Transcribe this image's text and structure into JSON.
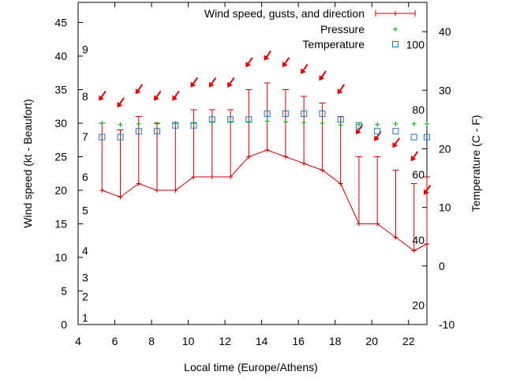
{
  "chart_data": {
    "type": "line",
    "xlabel": "Local time (Europe/Athens)",
    "ylabel": "Wind speed (kt - Beaufort)",
    "y2label": "Temperature (C - F)",
    "xlim": [
      4,
      23
    ],
    "ylim": [
      0,
      48
    ],
    "y2lim": [
      -10,
      45
    ],
    "x_ticks": [
      4,
      6,
      8,
      10,
      12,
      14,
      16,
      18,
      20,
      22
    ],
    "y_ticks": [
      0,
      5,
      10,
      15,
      20,
      25,
      30,
      35,
      40,
      45
    ],
    "y2_ticks": [
      -10,
      0,
      10,
      20,
      30,
      40
    ],
    "beaufort_ticks": [
      {
        "label": "1",
        "y": 1
      },
      {
        "label": "2",
        "y": 4.2
      },
      {
        "label": "3",
        "y": 7
      },
      {
        "label": "4",
        "y": 11
      },
      {
        "label": "5",
        "y": 17
      },
      {
        "label": "6",
        "y": 22
      },
      {
        "label": "7",
        "y": 28
      },
      {
        "label": "8",
        "y": 34
      },
      {
        "label": "9",
        "y": 41
      }
    ],
    "fahrenheit_ticks": [
      {
        "label": "20",
        "y2": -6.7
      },
      {
        "label": "40",
        "y2": 4.4
      },
      {
        "label": "60",
        "y2": 15.6
      },
      {
        "label": "80",
        "y2": 26.7
      },
      {
        "label": "100",
        "y2": 37.8
      }
    ],
    "legend": {
      "position": "top-right",
      "entries": [
        "Wind speed, gusts, and direction",
        "Pressure",
        "Temperature"
      ]
    },
    "colors": {
      "wind": "#cc0000",
      "pressure": "#00aa00",
      "temperature": "#1e78c8",
      "arrow": "#dd0000"
    },
    "series": [
      {
        "name": "Wind speed, gusts, and direction",
        "x": [
          5.3,
          6.3,
          7.3,
          8.3,
          9.3,
          10.3,
          11.3,
          12.3,
          13.3,
          14.3,
          15.3,
          16.3,
          17.3,
          18.3,
          19.3,
          20.3,
          21.3,
          22.3,
          23.0
        ],
        "wind": [
          20,
          19,
          21,
          20,
          20,
          22,
          22,
          22,
          25,
          26,
          25,
          24,
          23,
          21,
          15,
          15,
          13,
          11,
          12
        ],
        "gust": [
          30,
          29,
          31,
          30,
          30,
          32,
          32,
          32,
          35,
          36,
          35,
          34,
          33,
          31,
          25,
          25,
          23,
          21,
          22
        ],
        "direction_arrow_y": [
          34,
          33,
          35,
          34,
          34,
          36,
          36,
          36,
          39,
          40,
          39,
          38,
          37,
          35,
          29,
          28,
          27,
          25,
          20
        ]
      },
      {
        "name": "Pressure",
        "x": [
          5.3,
          6.3,
          7.3,
          8.3,
          9.3,
          10.3,
          11.3,
          12.3,
          13.3,
          14.3,
          15.3,
          16.3,
          17.3,
          18.3,
          19.3,
          20.3,
          21.3,
          22.3,
          23.0
        ],
        "y": [
          30,
          29.8,
          29.9,
          29.9,
          30,
          30,
          30.2,
          30.2,
          30.2,
          30.3,
          30.2,
          30.1,
          30,
          29.7,
          29.8,
          29.8,
          29.9,
          29.9,
          29.9
        ]
      },
      {
        "name": "Temperature",
        "axis": "y2",
        "x": [
          5.3,
          6.3,
          7.3,
          8.3,
          9.3,
          10.3,
          11.3,
          12.3,
          13.3,
          14.3,
          15.3,
          16.3,
          17.3,
          18.3,
          19.3,
          20.3,
          21.3,
          22.3,
          23.0
        ],
        "y": [
          22,
          22,
          23,
          23,
          24,
          24,
          25,
          25,
          25,
          26,
          26,
          26,
          26,
          25,
          24,
          23,
          23,
          22,
          22
        ]
      }
    ]
  }
}
